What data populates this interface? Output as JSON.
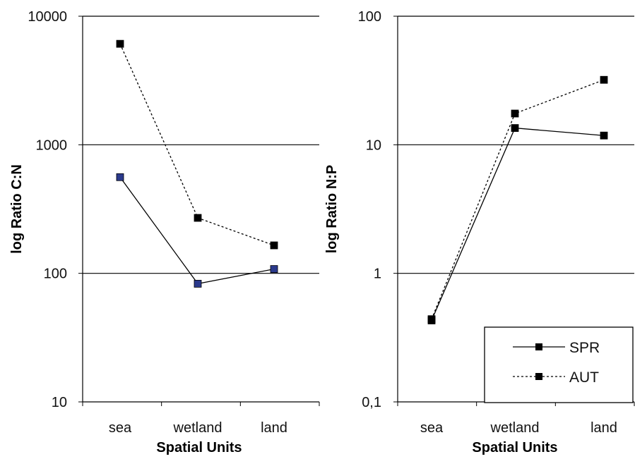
{
  "chart_data": [
    {
      "type": "line",
      "y_scale": "log",
      "categories": [
        "sea",
        "wetland",
        "land"
      ],
      "ylabel": "log Ratio C:N",
      "xlabel": "Spatial Units",
      "ylim": [
        10,
        10000
      ],
      "yticks": [
        "10",
        "100",
        "1000",
        "10000"
      ],
      "grid": "horizontal",
      "series": [
        {
          "name": "SPR",
          "values": [
            560,
            83,
            108
          ],
          "style": "solid",
          "marker_color": "#2b3a8c"
        },
        {
          "name": "AUT",
          "values": [
            6100,
            270,
            165
          ],
          "style": "dotted",
          "marker_color": "#000000"
        }
      ]
    },
    {
      "type": "line",
      "y_scale": "log",
      "categories": [
        "sea",
        "wetland",
        "land"
      ],
      "ylabel": "log Ratio N:P",
      "xlabel": "Spatial Units",
      "ylim": [
        0.1,
        100
      ],
      "yticks": [
        "0,1",
        "1",
        "10",
        "100"
      ],
      "grid": "horizontal",
      "legend": {
        "position": "bottom-right",
        "entries": [
          "SPR",
          "AUT"
        ]
      },
      "series": [
        {
          "name": "SPR",
          "values": [
            0.43,
            13.5,
            11.8
          ],
          "style": "solid",
          "marker_color": "#000000"
        },
        {
          "name": "AUT",
          "values": [
            0.44,
            17.5,
            32
          ],
          "style": "dotted",
          "marker_color": "#000000"
        }
      ]
    }
  ]
}
